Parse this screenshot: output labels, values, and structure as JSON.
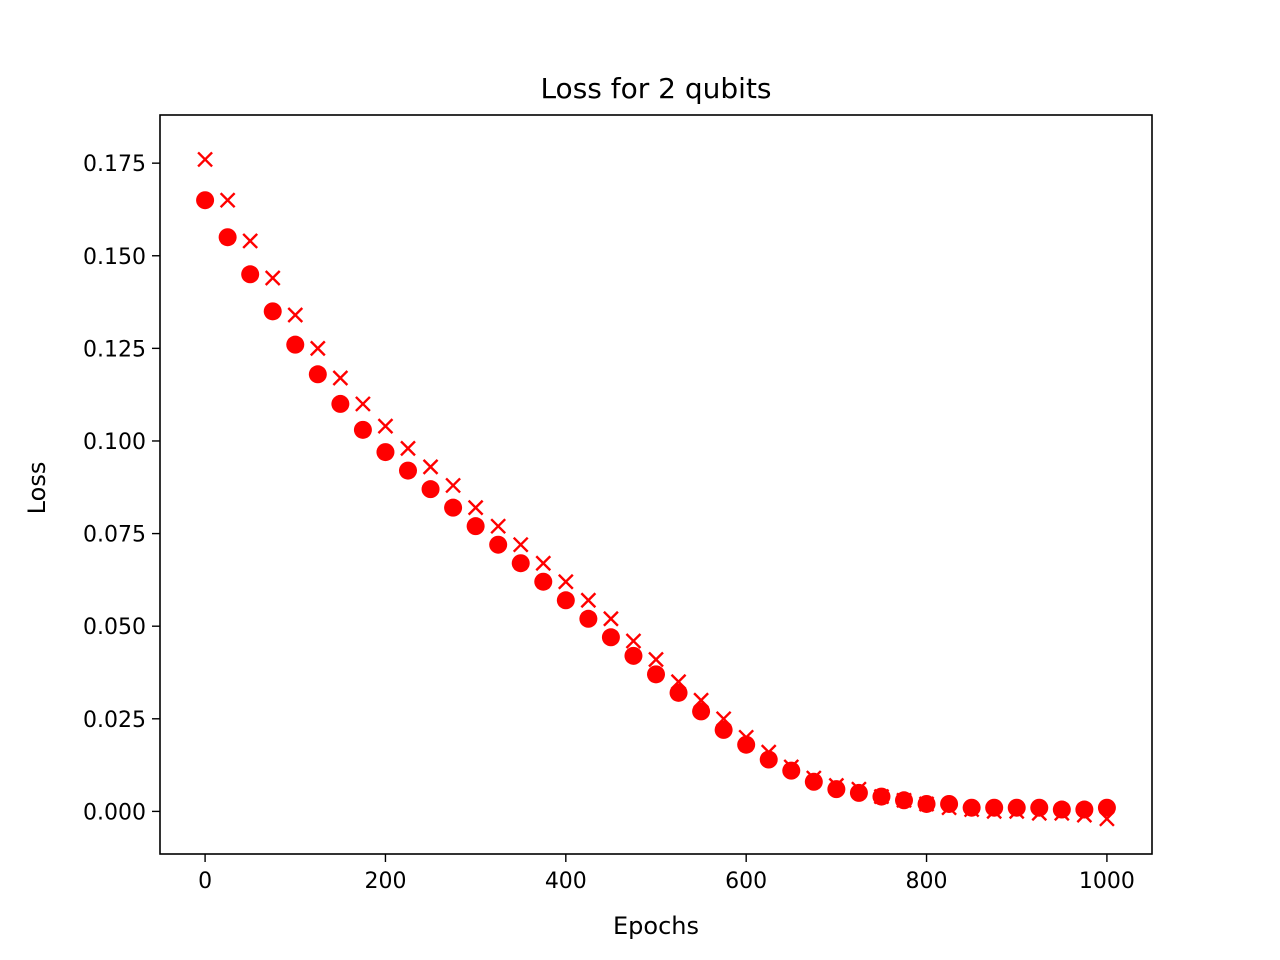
{
  "chart_data": {
    "type": "scatter",
    "title": "Loss for 2 qubits",
    "xlabel": "Epochs",
    "ylabel": "Loss",
    "xlim": [
      -50,
      1050
    ],
    "ylim": [
      -0.0115,
      0.188
    ],
    "xticks": [
      0,
      200,
      400,
      600,
      800,
      1000
    ],
    "xtick_labels": [
      "0",
      "200",
      "400",
      "600",
      "800",
      "1000"
    ],
    "yticks": [
      0.0,
      0.025,
      0.05,
      0.075,
      0.1,
      0.125,
      0.15,
      0.175
    ],
    "ytick_labels": [
      "0.000",
      "0.025",
      "0.050",
      "0.075",
      "0.100",
      "0.125",
      "0.150",
      "0.175"
    ],
    "grid": false,
    "series_color": "#ff0000",
    "series": [
      {
        "marker": "circle",
        "x": [
          0,
          25,
          50,
          75,
          100,
          125,
          150,
          175,
          200,
          225,
          250,
          275,
          300,
          325,
          350,
          375,
          400,
          425,
          450,
          475,
          500,
          525,
          550,
          575,
          600,
          625,
          650,
          675,
          700,
          725,
          750,
          775,
          800,
          825,
          850,
          875,
          900,
          925,
          950,
          975,
          1000
        ],
        "y": [
          0.165,
          0.155,
          0.145,
          0.135,
          0.126,
          0.118,
          0.11,
          0.103,
          0.097,
          0.092,
          0.087,
          0.082,
          0.077,
          0.072,
          0.067,
          0.062,
          0.057,
          0.052,
          0.047,
          0.042,
          0.037,
          0.032,
          0.027,
          0.022,
          0.018,
          0.014,
          0.011,
          0.008,
          0.006,
          0.005,
          0.004,
          0.003,
          0.002,
          0.002,
          0.001,
          0.001,
          0.001,
          0.001,
          0.0005,
          0.0005,
          0.001
        ]
      },
      {
        "marker": "x",
        "x": [
          0,
          25,
          50,
          75,
          100,
          125,
          150,
          175,
          200,
          225,
          250,
          275,
          300,
          325,
          350,
          375,
          400,
          425,
          450,
          475,
          500,
          525,
          550,
          575,
          600,
          625,
          650,
          675,
          700,
          725,
          750,
          775,
          800,
          825,
          850,
          875,
          900,
          925,
          950,
          975,
          1000
        ],
        "y": [
          0.176,
          0.165,
          0.154,
          0.144,
          0.134,
          0.125,
          0.117,
          0.11,
          0.104,
          0.098,
          0.093,
          0.088,
          0.082,
          0.077,
          0.072,
          0.067,
          0.062,
          0.057,
          0.052,
          0.046,
          0.041,
          0.035,
          0.03,
          0.025,
          0.02,
          0.016,
          0.012,
          0.009,
          0.007,
          0.006,
          0.004,
          0.003,
          0.002,
          0.001,
          0.0005,
          0.0,
          0.0,
          -0.0005,
          -0.0005,
          -0.001,
          -0.002
        ]
      }
    ]
  }
}
